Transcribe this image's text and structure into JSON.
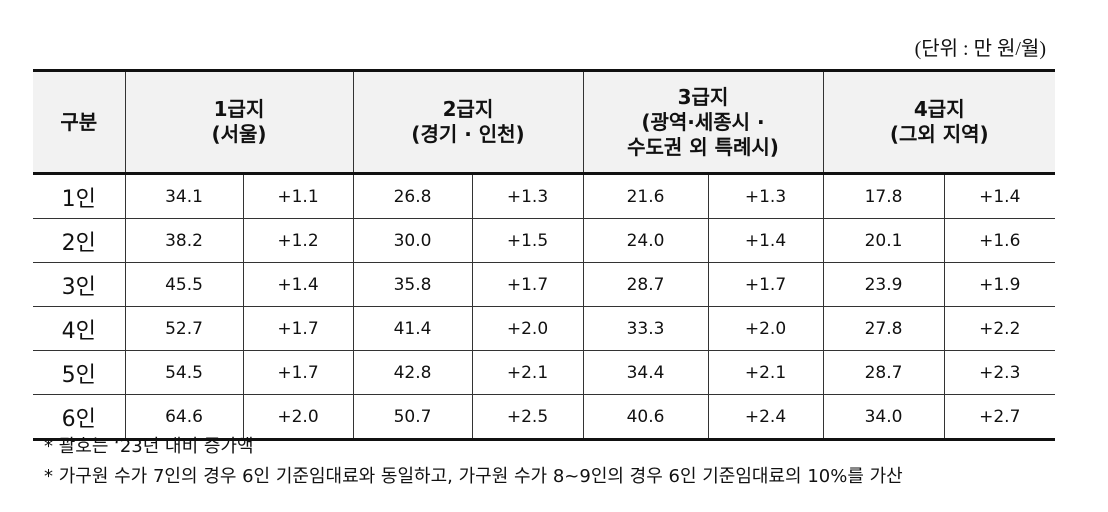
{
  "unit": "(단위 : 만 원/월)",
  "table": {
    "header": [
      [
        "구분"
      ],
      [
        "1급지",
        "(서울)"
      ],
      [
        "2급지",
        "(경기 · 인천)"
      ],
      [
        "3급지",
        "(광역·세종시 ·",
        "수도권 외 특례시)"
      ],
      [
        "4급지",
        "(그외 지역)"
      ]
    ],
    "rows": [
      [
        "1인",
        "34.1",
        "+1.1",
        "26.8",
        "+1.3",
        "21.6",
        "+1.3",
        "17.8",
        "+1.4"
      ],
      [
        "2인",
        "38.2",
        "+1.2",
        "30.0",
        "+1.5",
        "24.0",
        "+1.4",
        "20.1",
        "+1.6"
      ],
      [
        "3인",
        "45.5",
        "+1.4",
        "35.8",
        "+1.7",
        "28.7",
        "+1.7",
        "23.9",
        "+1.9"
      ],
      [
        "4인",
        "52.7",
        "+1.7",
        "41.4",
        "+2.0",
        "33.3",
        "+2.0",
        "27.8",
        "+2.2"
      ],
      [
        "5인",
        "54.5",
        "+1.7",
        "42.8",
        "+2.1",
        "34.4",
        "+2.1",
        "28.7",
        "+2.3"
      ],
      [
        "6인",
        "64.6",
        "+2.0",
        "50.7",
        "+2.5",
        "40.6",
        "+2.4",
        "34.0",
        "+2.7"
      ]
    ]
  },
  "notes": [
    "* 괄호는 ‘23년 대비 증가액",
    "* 가구원 수가 7인의 경우 6인 기준임대료와 동일하고, 가구원 수가 8~9인의 경우 6인 기준임대료의 10%를 가산"
  ]
}
